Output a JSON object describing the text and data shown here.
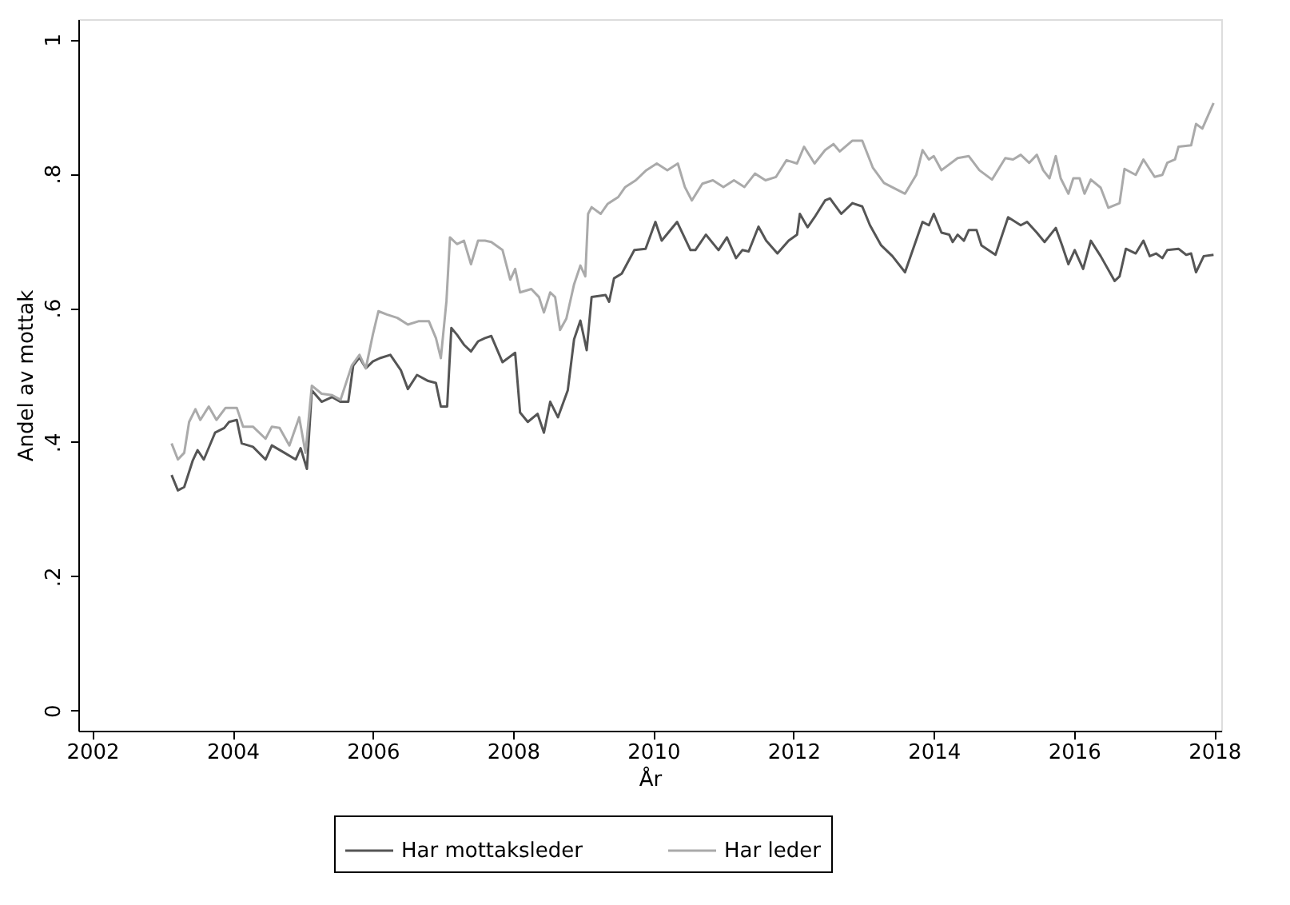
{
  "chart_data": {
    "type": "line",
    "xlabel": "År",
    "ylabel": "Andel av mottak",
    "xlim": [
      2001.8,
      2018.1
    ],
    "ylim": [
      -0.03,
      1.03
    ],
    "xticks": [
      2002,
      2004,
      2006,
      2008,
      2010,
      2012,
      2014,
      2016,
      2018
    ],
    "yticks": [
      0,
      {
        "value": 0.2,
        "label": ".2"
      },
      {
        "value": 0.4,
        "label": ".4"
      },
      {
        "value": 0.6,
        "label": ".6"
      },
      {
        "value": 0.8,
        "label": ".8"
      },
      1
    ],
    "grid": false,
    "legend": "bottom",
    "marker": "none",
    "line_style": "solid",
    "series": [
      {
        "name": "Har mottaksleder",
        "color": "#555555",
        "x": [
          2003.13,
          2003.22,
          2003.31,
          2003.43,
          2003.5,
          2003.59,
          2003.75,
          2003.88,
          2003.95,
          2004.06,
          2004.13,
          2004.29,
          2004.47,
          2004.56,
          2004.74,
          2004.9,
          2004.97,
          2005.06,
          2005.13,
          2005.27,
          2005.42,
          2005.54,
          2005.65,
          2005.72,
          2005.81,
          2005.9,
          2006.0,
          2006.1,
          2006.25,
          2006.4,
          2006.5,
          2006.63,
          2006.79,
          2006.9,
          2006.97,
          2007.06,
          2007.12,
          2007.2,
          2007.3,
          2007.4,
          2007.5,
          2007.6,
          2007.69,
          2007.85,
          2008.03,
          2008.1,
          2008.21,
          2008.35,
          2008.44,
          2008.53,
          2008.64,
          2008.78,
          2008.87,
          2008.96,
          2009.05,
          2009.12,
          2009.32,
          2009.37,
          2009.44,
          2009.55,
          2009.73,
          2009.89,
          2010.03,
          2010.12,
          2010.34,
          2010.53,
          2010.6,
          2010.75,
          2010.93,
          2011.05,
          2011.18,
          2011.27,
          2011.36,
          2011.5,
          2011.61,
          2011.77,
          2011.93,
          2012.05,
          2012.09,
          2012.2,
          2012.3,
          2012.45,
          2012.52,
          2012.68,
          2012.84,
          2012.98,
          2013.09,
          2013.25,
          2013.41,
          2013.59,
          2013.7,
          2013.84,
          2013.93,
          2014.0,
          2014.11,
          2014.22,
          2014.27,
          2014.34,
          2014.43,
          2014.5,
          2014.61,
          2014.68,
          2014.88,
          2015.06,
          2015.24,
          2015.33,
          2015.47,
          2015.58,
          2015.74,
          2015.83,
          2015.92,
          2016.01,
          2016.13,
          2016.24,
          2016.38,
          2016.58,
          2016.65,
          2016.74,
          2016.88,
          2016.99,
          2017.08,
          2017.17,
          2017.26,
          2017.33,
          2017.49,
          2017.6,
          2017.67,
          2017.74,
          2017.85,
          2017.99
        ],
        "values": [
          0.351,
          0.328,
          0.333,
          0.372,
          0.388,
          0.374,
          0.414,
          0.421,
          0.43,
          0.433,
          0.398,
          0.393,
          0.374,
          0.395,
          0.384,
          0.374,
          0.391,
          0.36,
          0.477,
          0.46,
          0.467,
          0.46,
          0.46,
          0.514,
          0.526,
          0.51,
          0.52,
          0.525,
          0.53,
          0.507,
          0.479,
          0.5,
          0.491,
          0.488,
          0.453,
          0.453,
          0.57,
          0.56,
          0.545,
          0.535,
          0.55,
          0.555,
          0.558,
          0.519,
          0.533,
          0.444,
          0.43,
          0.442,
          0.414,
          0.46,
          0.437,
          0.477,
          0.553,
          0.581,
          0.537,
          0.616,
          0.619,
          0.609,
          0.644,
          0.651,
          0.686,
          0.688,
          0.728,
          0.7,
          0.728,
          0.686,
          0.686,
          0.709,
          0.686,
          0.705,
          0.674,
          0.686,
          0.684,
          0.721,
          0.7,
          0.681,
          0.7,
          0.709,
          0.74,
          0.72,
          0.735,
          0.76,
          0.763,
          0.74,
          0.756,
          0.751,
          0.723,
          0.693,
          0.677,
          0.653,
          0.686,
          0.728,
          0.723,
          0.74,
          0.712,
          0.709,
          0.698,
          0.709,
          0.7,
          0.716,
          0.716,
          0.693,
          0.679,
          0.735,
          0.723,
          0.728,
          0.712,
          0.698,
          0.719,
          0.693,
          0.665,
          0.686,
          0.658,
          0.7,
          0.677,
          0.64,
          0.647,
          0.688,
          0.681,
          0.7,
          0.677,
          0.681,
          0.674,
          0.686,
          0.688,
          0.679,
          0.681,
          0.653,
          0.677,
          0.679
        ]
      },
      {
        "name": "Har leder",
        "color": "#aaaaaa",
        "x": [
          2003.13,
          2003.22,
          2003.31,
          2003.38,
          2003.47,
          2003.54,
          2003.66,
          2003.77,
          2003.9,
          2004.06,
          2004.15,
          2004.29,
          2004.47,
          2004.56,
          2004.67,
          2004.81,
          2004.95,
          2005.04,
          2005.13,
          2005.27,
          2005.42,
          2005.54,
          2005.7,
          2005.81,
          2005.9,
          2006.0,
          2006.08,
          2006.2,
          2006.35,
          2006.5,
          2006.65,
          2006.8,
          2006.9,
          2006.97,
          2007.05,
          2007.1,
          2007.2,
          2007.3,
          2007.4,
          2007.5,
          2007.6,
          2007.69,
          2007.85,
          2007.96,
          2008.03,
          2008.1,
          2008.26,
          2008.37,
          2008.44,
          2008.53,
          2008.6,
          2008.67,
          2008.76,
          2008.87,
          2008.96,
          2009.03,
          2009.07,
          2009.12,
          2009.25,
          2009.35,
          2009.5,
          2009.6,
          2009.75,
          2009.9,
          2010.05,
          2010.2,
          2010.35,
          2010.45,
          2010.55,
          2010.7,
          2010.85,
          2011.0,
          2011.15,
          2011.3,
          2011.45,
          2011.6,
          2011.75,
          2011.9,
          2012.05,
          2012.15,
          2012.3,
          2012.45,
          2012.57,
          2012.66,
          2012.84,
          2012.98,
          2013.13,
          2013.29,
          2013.59,
          2013.75,
          2013.84,
          2013.93,
          2014.0,
          2014.11,
          2014.34,
          2014.5,
          2014.65,
          2014.83,
          2015.02,
          2015.13,
          2015.24,
          2015.36,
          2015.47,
          2015.56,
          2015.65,
          2015.74,
          2015.81,
          2015.92,
          2015.99,
          2016.08,
          2016.15,
          2016.24,
          2016.38,
          2016.49,
          2016.65,
          2016.72,
          2016.88,
          2016.99,
          2017.15,
          2017.26,
          2017.33,
          2017.44,
          2017.49,
          2017.67,
          2017.74,
          2017.83,
          2017.99
        ],
        "values": [
          0.398,
          0.374,
          0.384,
          0.43,
          0.449,
          0.433,
          0.453,
          0.433,
          0.451,
          0.451,
          0.423,
          0.423,
          0.405,
          0.423,
          0.421,
          0.395,
          0.437,
          0.384,
          0.484,
          0.472,
          0.47,
          0.463,
          0.514,
          0.53,
          0.51,
          0.56,
          0.595,
          0.59,
          0.585,
          0.575,
          0.58,
          0.58,
          0.555,
          0.525,
          0.61,
          0.705,
          0.695,
          0.7,
          0.665,
          0.7,
          0.7,
          0.698,
          0.686,
          0.642,
          0.658,
          0.623,
          0.628,
          0.616,
          0.593,
          0.623,
          0.616,
          0.567,
          0.584,
          0.635,
          0.663,
          0.647,
          0.74,
          0.75,
          0.74,
          0.755,
          0.765,
          0.78,
          0.79,
          0.805,
          0.815,
          0.805,
          0.815,
          0.78,
          0.76,
          0.785,
          0.79,
          0.78,
          0.79,
          0.78,
          0.8,
          0.79,
          0.795,
          0.82,
          0.815,
          0.84,
          0.815,
          0.835,
          0.844,
          0.833,
          0.849,
          0.849,
          0.809,
          0.786,
          0.77,
          0.798,
          0.835,
          0.821,
          0.826,
          0.805,
          0.823,
          0.826,
          0.805,
          0.791,
          0.823,
          0.821,
          0.828,
          0.816,
          0.828,
          0.805,
          0.793,
          0.826,
          0.793,
          0.77,
          0.793,
          0.793,
          0.77,
          0.791,
          0.779,
          0.749,
          0.756,
          0.807,
          0.798,
          0.821,
          0.795,
          0.798,
          0.816,
          0.821,
          0.84,
          0.842,
          0.874,
          0.867,
          0.905
        ]
      }
    ]
  }
}
